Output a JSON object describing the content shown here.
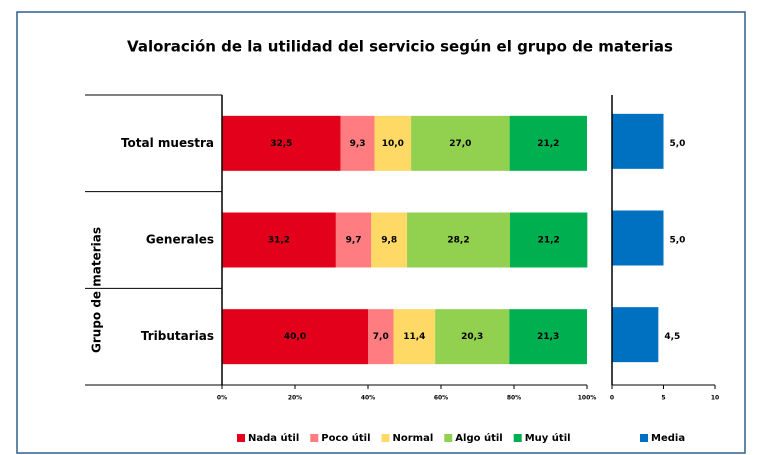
{
  "chart_data": [
    {
      "type": "stacked_barh",
      "title": "Valoración de la utilidad del servicio según el grupo de materias",
      "ylabel": "Grupo de materias",
      "categories": [
        "Total muestra",
        "Generales",
        "Tributarias"
      ],
      "series": [
        {
          "name": "Nada útil",
          "color": "#e3001b",
          "values": [
            32.5,
            31.2,
            40.0
          ],
          "value_labels": [
            "32,5",
            "31,2",
            "40,0"
          ]
        },
        {
          "name": "Poco útil",
          "color": "#ff7c80",
          "values": [
            9.3,
            9.7,
            7.0
          ],
          "value_labels": [
            "9,3",
            "9,7",
            "7,0"
          ]
        },
        {
          "name": "Normal",
          "color": "#ffd966",
          "values": [
            10.0,
            9.8,
            11.4
          ],
          "value_labels": [
            "10,0",
            "9,8",
            "11,4"
          ]
        },
        {
          "name": "Algo útil",
          "color": "#92d050",
          "values": [
            27.0,
            28.2,
            20.3
          ],
          "value_labels": [
            "27,0",
            "28,2",
            "20,3"
          ]
        },
        {
          "name": "Muy útil",
          "color": "#00b050",
          "values": [
            21.2,
            21.2,
            21.3
          ],
          "value_labels": [
            "21,2",
            "21,2",
            "21,3"
          ]
        }
      ],
      "xlim": [
        0,
        100
      ],
      "xticks": [
        {
          "value": 0,
          "label": "0%"
        },
        {
          "value": 20,
          "label": "20%"
        },
        {
          "value": 40,
          "label": "40%"
        },
        {
          "value": 60,
          "label": "60%"
        },
        {
          "value": 80,
          "label": "80%"
        },
        {
          "value": 100,
          "label": "100%"
        }
      ],
      "legend": "bottom"
    },
    {
      "type": "barh",
      "series": [
        {
          "name": "Media",
          "color": "#0070c0",
          "values": [
            5.0,
            5.0,
            4.5
          ],
          "value_labels": [
            "5,0",
            "5,0",
            "4,5"
          ]
        }
      ],
      "xlim": [
        0,
        10
      ],
      "xticks": [
        0,
        5,
        10
      ],
      "legend": "bottom"
    }
  ]
}
